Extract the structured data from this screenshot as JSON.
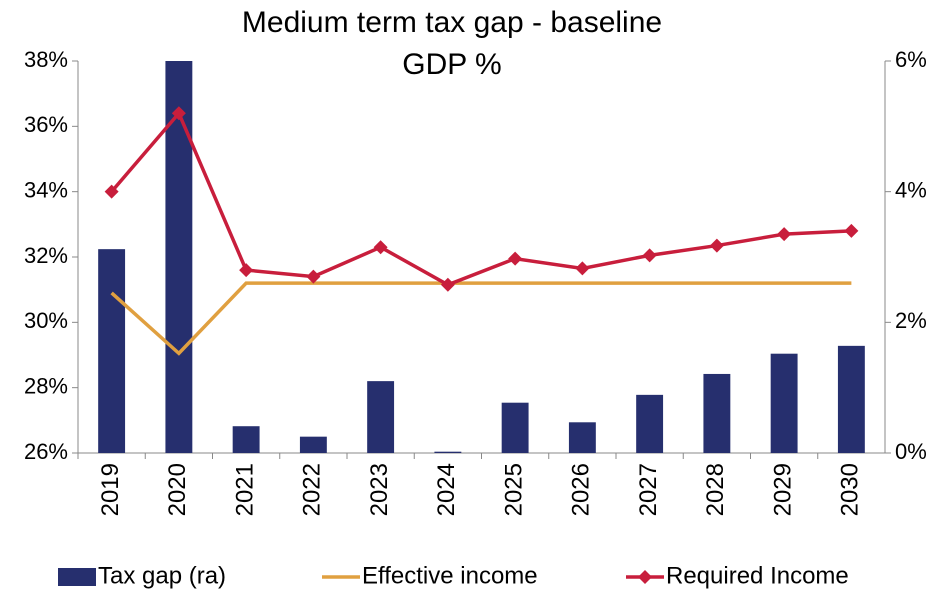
{
  "chart_data": {
    "type": "bar-line",
    "title": [
      "Medium term tax gap - baseline",
      "GDP %"
    ],
    "categories": [
      "2019",
      "2020",
      "2021",
      "2022",
      "2023",
      "2024",
      "2025",
      "2026",
      "2027",
      "2028",
      "2029",
      "2030"
    ],
    "series": [
      {
        "name": "Tax gap (ra)",
        "type": "bar",
        "axis": "y2",
        "color": "#262f6e",
        "values": [
          3.12,
          6.0,
          0.41,
          0.25,
          1.1,
          0.02,
          0.77,
          0.47,
          0.89,
          1.21,
          1.52,
          1.64
        ]
      },
      {
        "name": "Effective income",
        "type": "line",
        "color": "#e0a040",
        "values": [
          30.9,
          29.05,
          31.2,
          31.2,
          31.2,
          31.2,
          31.2,
          31.2,
          31.2,
          31.2,
          31.2,
          31.2
        ]
      },
      {
        "name": "Required Income",
        "type": "line",
        "marker": "diamond",
        "color": "#c81e3c",
        "values": [
          34.0,
          36.4,
          31.6,
          31.4,
          32.3,
          31.15,
          31.95,
          31.65,
          32.05,
          32.35,
          32.7,
          32.8
        ]
      }
    ],
    "ylim": [
      26,
      38
    ],
    "yticks": [
      {
        "value": 26,
        "label": "26%"
      },
      {
        "value": 28,
        "label": "28%"
      },
      {
        "value": 30,
        "label": "30%"
      },
      {
        "value": 32,
        "label": "32%"
      },
      {
        "value": 34,
        "label": "34%"
      },
      {
        "value": 36,
        "label": "36%"
      },
      {
        "value": 38,
        "label": "38%"
      }
    ],
    "y2lim": [
      0,
      6
    ],
    "y2ticks": [
      {
        "value": 0,
        "label": "0%"
      },
      {
        "value": 2,
        "label": "2%"
      },
      {
        "value": 4,
        "label": "4%"
      },
      {
        "value": 6,
        "label": "6%"
      }
    ],
    "legend": "bottom"
  }
}
